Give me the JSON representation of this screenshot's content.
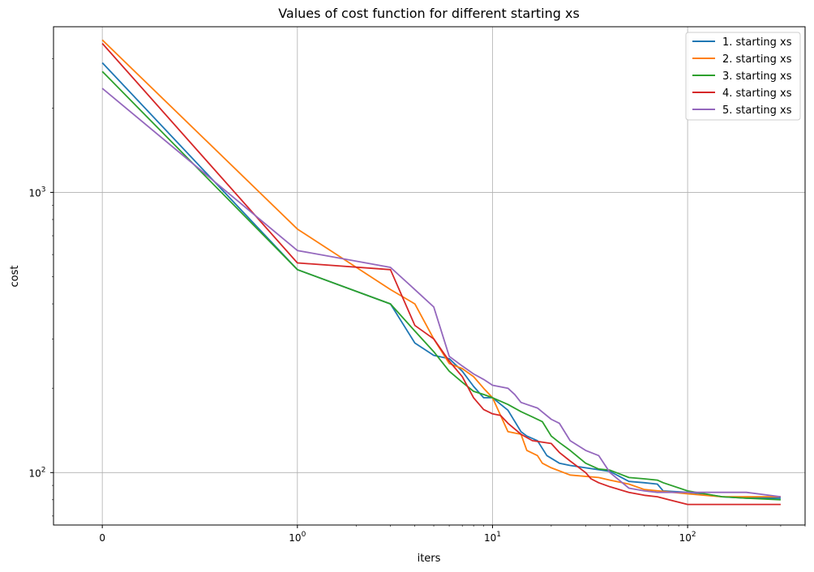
{
  "chart_data": {
    "type": "line",
    "title": "Values of cost function for different starting xs",
    "xlabel": "iters",
    "ylabel": "cost",
    "xscale": "symlog",
    "yscale": "log",
    "xlim": [
      -0.25,
      400
    ],
    "ylim": [
      65,
      3900
    ],
    "grid": true,
    "legend_position": "top-right",
    "x_ticks": [
      {
        "value": 0,
        "base": "0",
        "exp": ""
      },
      {
        "value": 1,
        "base": "10",
        "exp": "0"
      },
      {
        "value": 10,
        "base": "10",
        "exp": "1"
      },
      {
        "value": 100,
        "base": "10",
        "exp": "2"
      }
    ],
    "y_ticks": [
      {
        "value": 100,
        "base": "10",
        "exp": "2"
      },
      {
        "value": 1000,
        "base": "10",
        "exp": "3"
      }
    ],
    "series": [
      {
        "name": "1. starting xs",
        "color": "#1f77b4",
        "points": [
          [
            0,
            2900
          ],
          [
            1,
            530
          ],
          [
            3,
            400
          ],
          [
            4,
            290
          ],
          [
            5,
            262
          ],
          [
            6,
            255
          ],
          [
            7,
            230
          ],
          [
            8,
            203
          ],
          [
            9,
            185
          ],
          [
            10,
            185
          ],
          [
            12,
            167
          ],
          [
            14,
            140
          ],
          [
            15,
            135
          ],
          [
            17,
            130
          ],
          [
            19,
            115
          ],
          [
            22,
            108
          ],
          [
            25,
            106
          ],
          [
            30,
            104
          ],
          [
            40,
            101
          ],
          [
            50,
            93
          ],
          [
            60,
            92
          ],
          [
            70,
            91
          ],
          [
            75,
            86
          ],
          [
            100,
            85
          ],
          [
            120,
            84
          ],
          [
            150,
            82
          ],
          [
            200,
            81
          ],
          [
            300,
            81
          ]
        ]
      },
      {
        "name": "2. starting xs",
        "color": "#ff7f0e",
        "points": [
          [
            0,
            3500
          ],
          [
            1,
            740
          ],
          [
            3,
            450
          ],
          [
            4,
            400
          ],
          [
            5,
            300
          ],
          [
            6,
            245
          ],
          [
            7,
            235
          ],
          [
            8,
            220
          ],
          [
            9,
            200
          ],
          [
            10,
            185
          ],
          [
            11,
            160
          ],
          [
            12,
            140
          ],
          [
            14,
            137
          ],
          [
            15,
            120
          ],
          [
            17,
            115
          ],
          [
            18,
            108
          ],
          [
            20,
            104
          ],
          [
            25,
            98
          ],
          [
            35,
            96
          ],
          [
            40,
            94
          ],
          [
            50,
            91
          ],
          [
            60,
            87
          ],
          [
            100,
            84
          ],
          [
            150,
            82
          ],
          [
            200,
            82
          ],
          [
            300,
            82
          ]
        ]
      },
      {
        "name": "3. starting xs",
        "color": "#2ca02c",
        "points": [
          [
            0,
            2700
          ],
          [
            1,
            530
          ],
          [
            3,
            400
          ],
          [
            4,
            320
          ],
          [
            5,
            270
          ],
          [
            6,
            230
          ],
          [
            7,
            210
          ],
          [
            8,
            195
          ],
          [
            9,
            190
          ],
          [
            10,
            185
          ],
          [
            12,
            175
          ],
          [
            14,
            165
          ],
          [
            16,
            158
          ],
          [
            18,
            152
          ],
          [
            20,
            135
          ],
          [
            22,
            128
          ],
          [
            25,
            120
          ],
          [
            30,
            108
          ],
          [
            35,
            103
          ],
          [
            40,
            102
          ],
          [
            50,
            96
          ],
          [
            60,
            95
          ],
          [
            70,
            94
          ],
          [
            75,
            92
          ],
          [
            100,
            86
          ],
          [
            150,
            82
          ],
          [
            200,
            81
          ],
          [
            300,
            80
          ]
        ]
      },
      {
        "name": "4. starting xs",
        "color": "#d62728",
        "points": [
          [
            0,
            3400
          ],
          [
            1,
            560
          ],
          [
            3,
            530
          ],
          [
            4,
            335
          ],
          [
            5,
            300
          ],
          [
            6,
            250
          ],
          [
            7,
            220
          ],
          [
            8,
            185
          ],
          [
            9,
            168
          ],
          [
            10,
            162
          ],
          [
            11,
            160
          ],
          [
            12,
            150
          ],
          [
            14,
            137
          ],
          [
            16,
            130
          ],
          [
            20,
            127
          ],
          [
            22,
            118
          ],
          [
            25,
            110
          ],
          [
            30,
            100
          ],
          [
            32,
            95
          ],
          [
            35,
            92
          ],
          [
            40,
            89
          ],
          [
            50,
            85
          ],
          [
            60,
            83
          ],
          [
            70,
            82
          ],
          [
            80,
            80
          ],
          [
            100,
            77
          ],
          [
            150,
            77
          ],
          [
            200,
            77
          ],
          [
            300,
            77
          ]
        ]
      },
      {
        "name": "5. starting xs",
        "color": "#9467bd",
        "points": [
          [
            0,
            2350
          ],
          [
            1,
            620
          ],
          [
            3,
            540
          ],
          [
            4,
            450
          ],
          [
            5,
            390
          ],
          [
            6,
            260
          ],
          [
            7,
            240
          ],
          [
            8,
            225
          ],
          [
            9,
            215
          ],
          [
            10,
            205
          ],
          [
            12,
            200
          ],
          [
            13,
            190
          ],
          [
            14,
            178
          ],
          [
            15,
            175
          ],
          [
            17,
            170
          ],
          [
            20,
            155
          ],
          [
            22,
            150
          ],
          [
            25,
            130
          ],
          [
            30,
            120
          ],
          [
            35,
            115
          ],
          [
            40,
            100
          ],
          [
            50,
            88
          ],
          [
            60,
            86
          ],
          [
            70,
            85
          ],
          [
            100,
            85
          ],
          [
            150,
            85
          ],
          [
            200,
            85
          ],
          [
            300,
            82
          ]
        ]
      }
    ]
  }
}
